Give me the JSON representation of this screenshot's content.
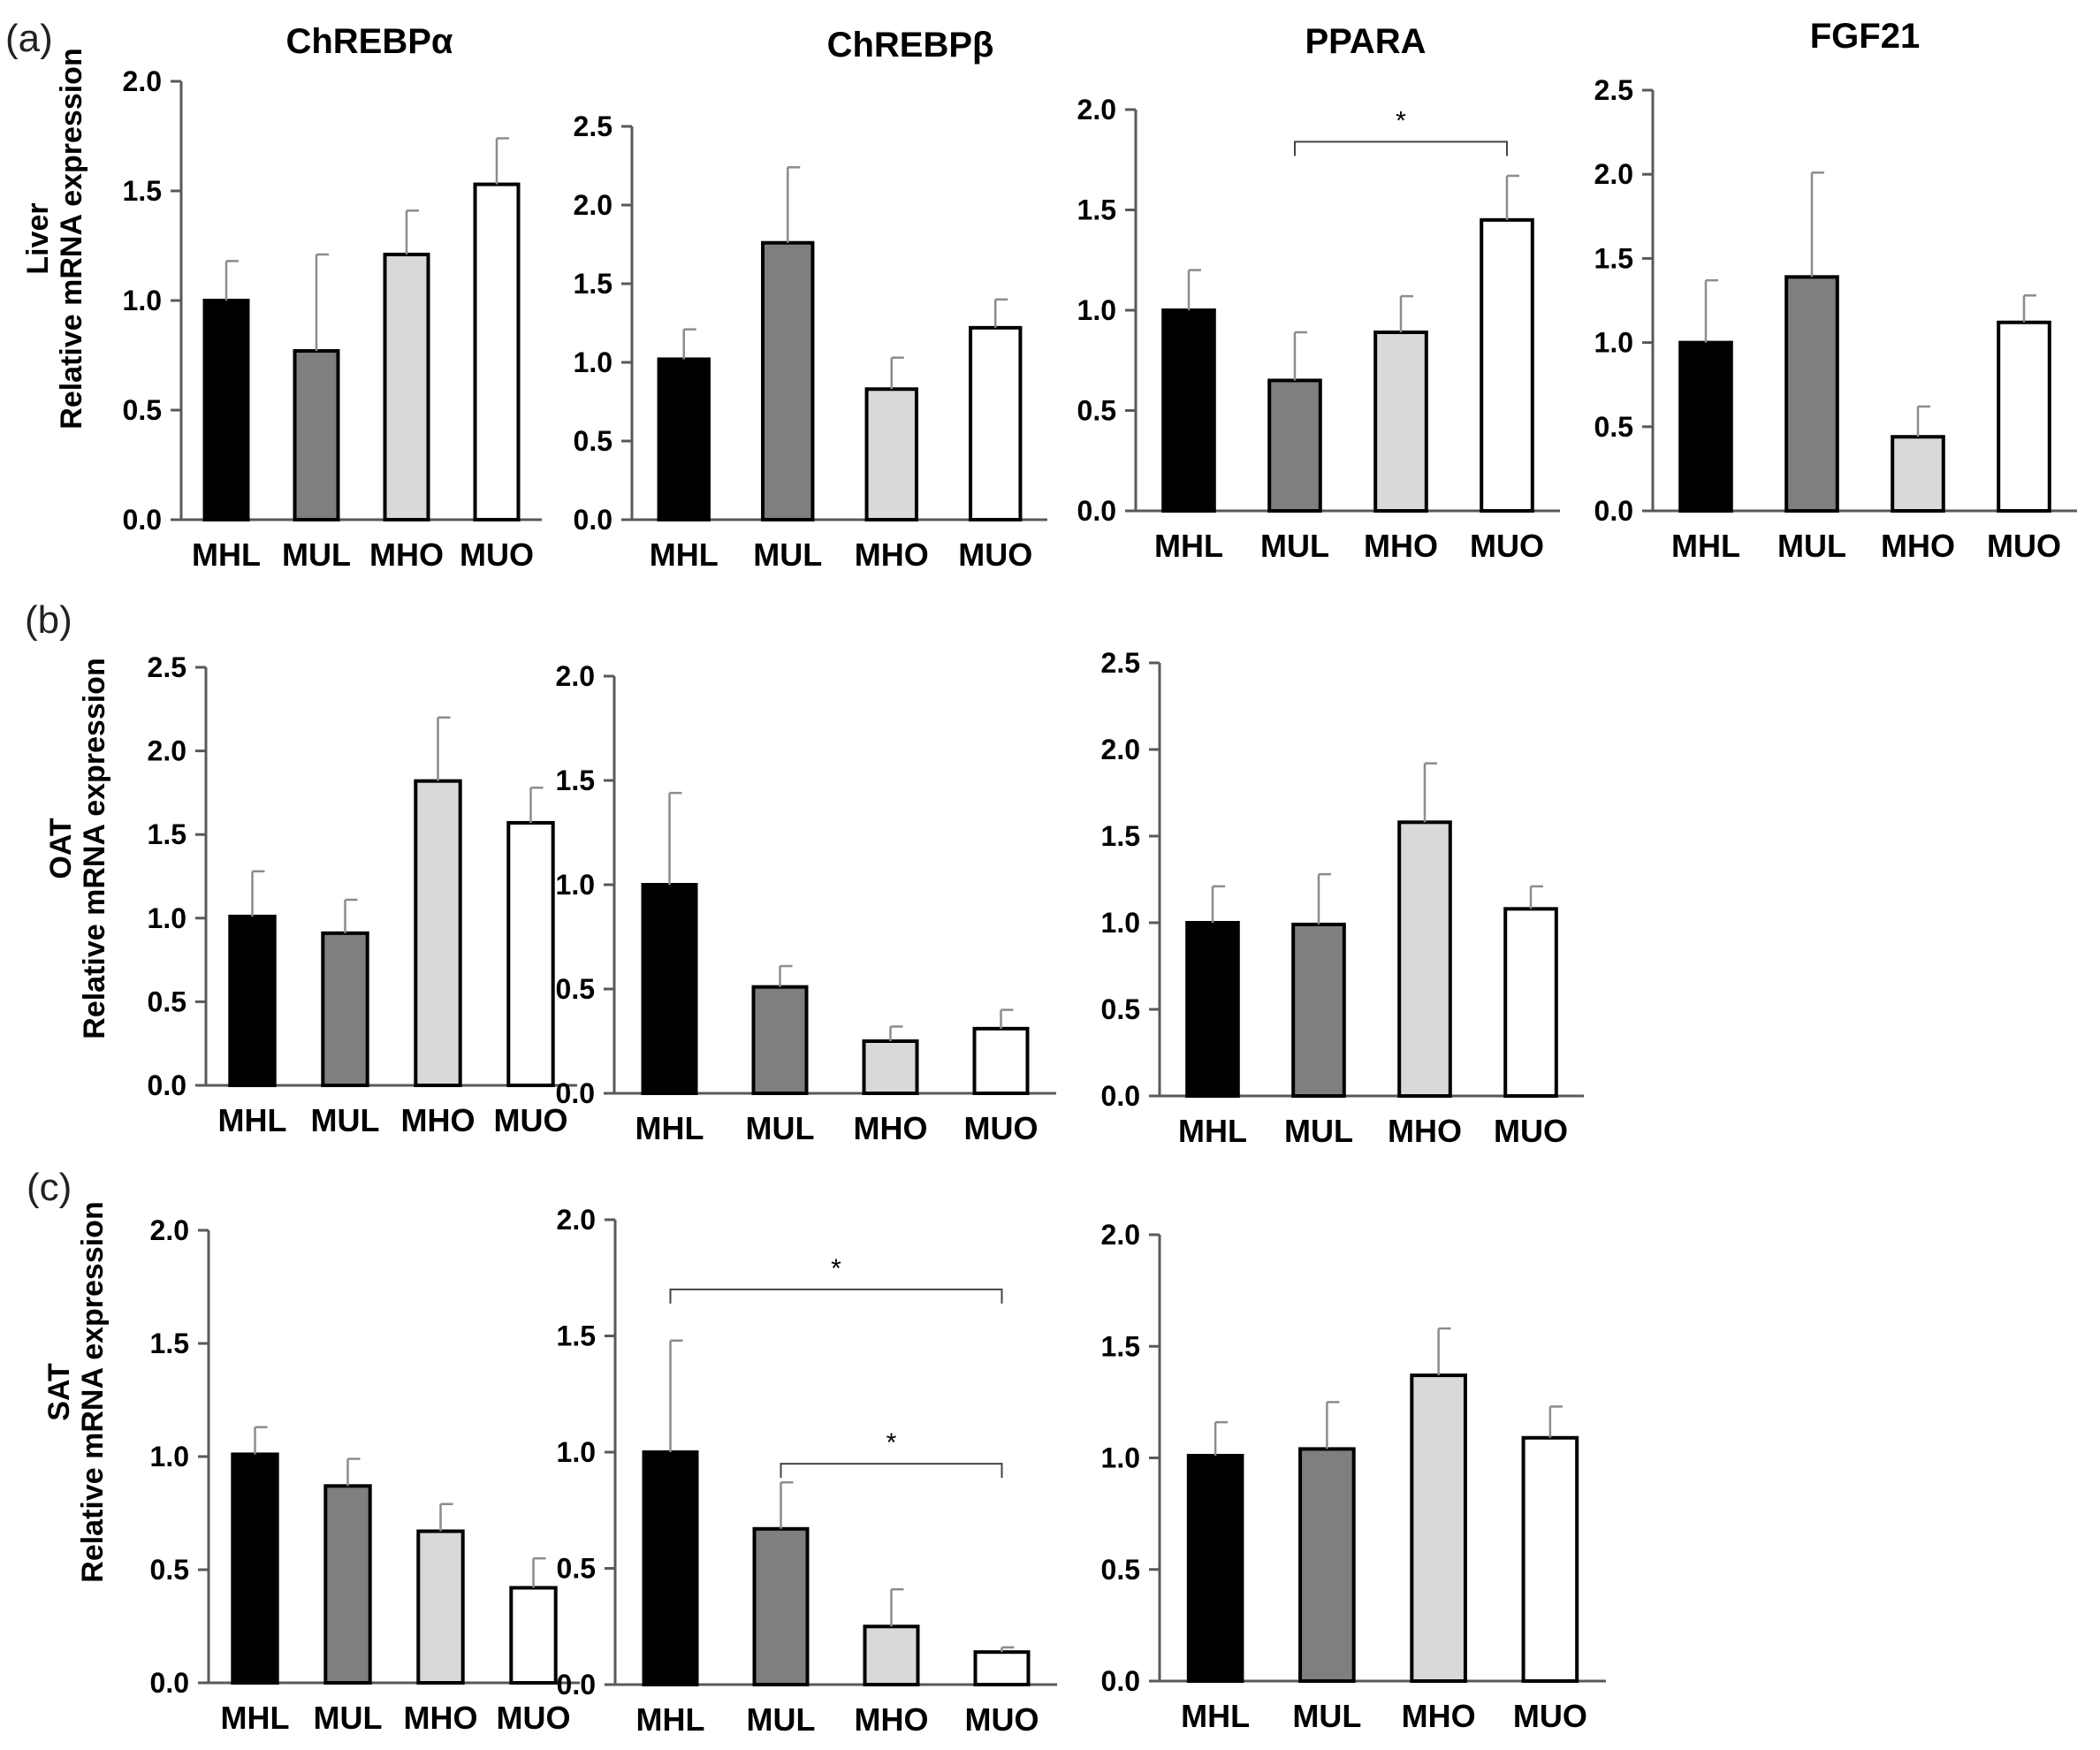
{
  "figure": {
    "panel_labels": [
      "(a)",
      "(b)",
      "(c)"
    ],
    "row_titles": [
      {
        "tissue": "Liver",
        "measure": "Relative mRNA expression"
      },
      {
        "tissue": "OAT",
        "measure": "Relative mRNA expression"
      },
      {
        "tissue": "SAT",
        "measure": "Relative mRNA expression"
      }
    ]
  },
  "colors": {
    "MHL": "#000000",
    "MUL": "#7f7f7f",
    "MHO": "#d9d9d9",
    "MUO": "#ffffff"
  },
  "chart_data": [
    {
      "type": "bar",
      "row": "a",
      "title": "ChREBPα",
      "categories": [
        "MHL",
        "MUL",
        "MHO",
        "MUO"
      ],
      "values": [
        1.0,
        0.77,
        1.21,
        1.53
      ],
      "errors": [
        0.18,
        0.44,
        0.2,
        0.21
      ],
      "ylim": [
        0,
        2.0
      ],
      "yticks": [
        "0.0",
        "0.5",
        "1.0",
        "1.5",
        "2.0"
      ],
      "significance": []
    },
    {
      "type": "bar",
      "row": "a",
      "title": "ChREBPβ",
      "categories": [
        "MHL",
        "MUL",
        "MHO",
        "MUO"
      ],
      "values": [
        1.02,
        1.76,
        0.83,
        1.22
      ],
      "errors": [
        0.19,
        0.48,
        0.2,
        0.18
      ],
      "ylim": [
        0,
        2.5
      ],
      "yticks": [
        "0.0",
        "0.5",
        "1.0",
        "1.5",
        "2.0",
        "2.5"
      ],
      "significance": []
    },
    {
      "type": "bar",
      "row": "a",
      "title": "PPARA",
      "categories": [
        "MHL",
        "MUL",
        "MHO",
        "MUO"
      ],
      "values": [
        1.0,
        0.65,
        0.89,
        1.45
      ],
      "errors": [
        0.2,
        0.24,
        0.18,
        0.22
      ],
      "ylim": [
        0,
        2.0
      ],
      "yticks": [
        "0.0",
        "0.5",
        "1.0",
        "1.5",
        "2.0"
      ],
      "significance": [
        {
          "from": "MUL",
          "to": "MUO",
          "level": 1.84,
          "label": "*"
        }
      ]
    },
    {
      "type": "bar",
      "row": "a",
      "title": "FGF21",
      "categories": [
        "MHL",
        "MUL",
        "MHO",
        "MUO"
      ],
      "values": [
        1.0,
        1.39,
        0.44,
        1.12
      ],
      "errors": [
        0.37,
        0.62,
        0.18,
        0.16
      ],
      "ylim": [
        0,
        2.5
      ],
      "yticks": [
        "0.0",
        "0.5",
        "1.0",
        "1.5",
        "2.0",
        "2.5"
      ],
      "significance": []
    },
    {
      "type": "bar",
      "row": "b",
      "title": "",
      "categories": [
        "MHL",
        "MUL",
        "MHO",
        "MUO"
      ],
      "values": [
        1.01,
        0.91,
        1.82,
        1.57
      ],
      "errors": [
        0.27,
        0.2,
        0.38,
        0.21
      ],
      "ylim": [
        0,
        2.5
      ],
      "yticks": [
        "0.0",
        "0.5",
        "1.0",
        "1.5",
        "2.0",
        "2.5"
      ],
      "significance": []
    },
    {
      "type": "bar",
      "row": "b",
      "title": "",
      "categories": [
        "MHL",
        "MUL",
        "MHO",
        "MUO"
      ],
      "values": [
        1.0,
        0.51,
        0.25,
        0.31
      ],
      "errors": [
        0.44,
        0.1,
        0.07,
        0.09
      ],
      "ylim": [
        0,
        2.0
      ],
      "yticks": [
        "0.0",
        "0.5",
        "1.0",
        "1.5",
        "2.0"
      ],
      "significance": []
    },
    {
      "type": "bar",
      "row": "b",
      "title": "",
      "categories": [
        "MHL",
        "MUL",
        "MHO",
        "MUO"
      ],
      "values": [
        1.0,
        0.99,
        1.58,
        1.08
      ],
      "errors": [
        0.21,
        0.29,
        0.34,
        0.13
      ],
      "ylim": [
        0,
        2.5
      ],
      "yticks": [
        "0.0",
        "0.5",
        "1.0",
        "1.5",
        "2.0",
        "2.5"
      ],
      "significance": []
    },
    {
      "type": "bar",
      "row": "c",
      "title": "",
      "categories": [
        "MHL",
        "MUL",
        "MHO",
        "MUO"
      ],
      "values": [
        1.01,
        0.87,
        0.67,
        0.42
      ],
      "errors": [
        0.12,
        0.12,
        0.12,
        0.13
      ],
      "ylim": [
        0,
        2.0
      ],
      "yticks": [
        "0.0",
        "0.5",
        "1.0",
        "1.5",
        "2.0"
      ],
      "significance": []
    },
    {
      "type": "bar",
      "row": "c",
      "title": "",
      "categories": [
        "MHL",
        "MUL",
        "MHO",
        "MUO"
      ],
      "values": [
        1.0,
        0.67,
        0.25,
        0.14
      ],
      "errors": [
        0.48,
        0.2,
        0.16,
        0.02
      ],
      "ylim": [
        0,
        2.0
      ],
      "yticks": [
        "0.0",
        "0.5",
        "1.0",
        "1.5",
        "2.0"
      ],
      "significance": [
        {
          "from": "MHL",
          "to": "MUO",
          "level": 1.7,
          "label": "*"
        },
        {
          "from": "MUL",
          "to": "MUO",
          "level": 0.95,
          "label": "*"
        }
      ]
    },
    {
      "type": "bar",
      "row": "c",
      "title": "",
      "categories": [
        "MHL",
        "MUL",
        "MHO",
        "MUO"
      ],
      "values": [
        1.01,
        1.04,
        1.37,
        1.09
      ],
      "errors": [
        0.15,
        0.21,
        0.21,
        0.14
      ],
      "ylim": [
        0,
        2.0
      ],
      "yticks": [
        "0.0",
        "0.5",
        "1.0",
        "1.5",
        "2.0"
      ],
      "significance": []
    }
  ]
}
